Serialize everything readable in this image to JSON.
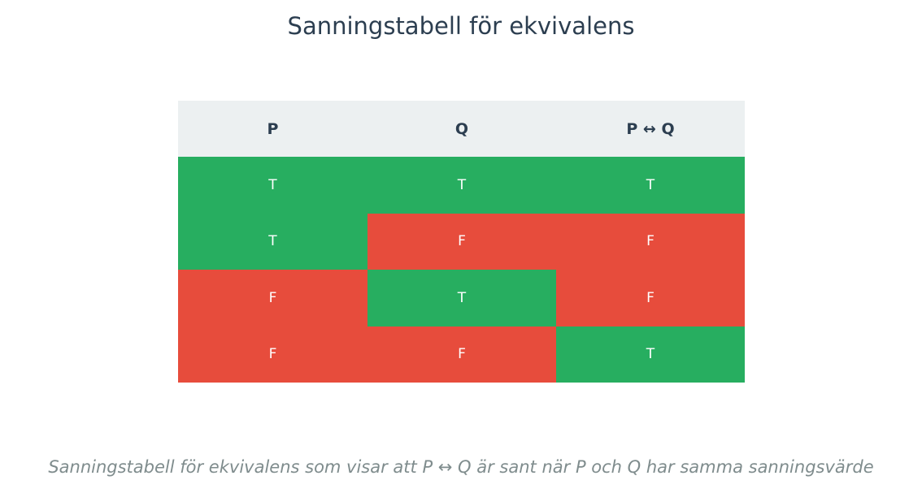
{
  "title": "Sanningstabell för ekvivalens",
  "table": {
    "headers": [
      "P",
      "Q",
      "P ↔ Q"
    ],
    "rows": [
      [
        "T",
        "T",
        "T"
      ],
      [
        "T",
        "F",
        "F"
      ],
      [
        "F",
        "T",
        "F"
      ],
      [
        "F",
        "F",
        "T"
      ]
    ]
  },
  "colors": {
    "true_cell": "#27ae60",
    "false_cell": "#e74c3c",
    "header_bg": "#ecf0f1",
    "title_text": "#2c3e50",
    "caption_text": "#7f8c8d"
  },
  "caption": "Sanningstabell för ekvivalens som visar att P ↔ Q är sant när P och Q har samma sanningsvärde"
}
